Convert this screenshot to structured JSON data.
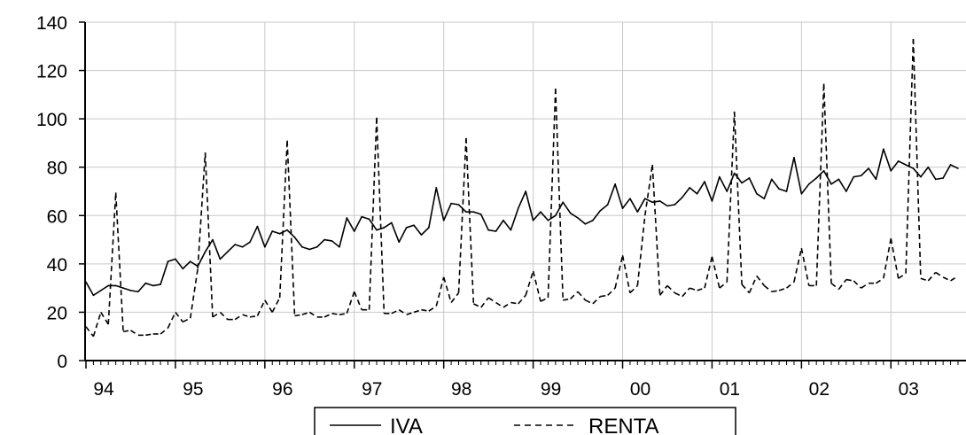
{
  "chart_data": {
    "type": "line",
    "title": "",
    "xlabel": "",
    "ylabel": "",
    "ylim": [
      0,
      140
    ],
    "yticks": [
      0,
      20,
      40,
      60,
      80,
      100,
      120,
      140
    ],
    "xticks": [
      "94",
      "95",
      "96",
      "97",
      "98",
      "99",
      "00",
      "01",
      "02",
      "03"
    ],
    "grid": true,
    "legend_position": "bottom-center",
    "x_start": "1994-01",
    "frequency": "monthly",
    "series": [
      {
        "name": "IVA_",
        "style": "solid",
        "color": "#000000",
        "values": [
          32.5,
          27.0,
          29.0,
          31.0,
          31.0,
          30.0,
          29.0,
          28.5,
          32.0,
          31.0,
          31.5,
          41.0,
          42.0,
          38.0,
          41.0,
          39.0,
          45.0,
          50.0,
          42.0,
          45.0,
          48.0,
          47.0,
          49.0,
          55.5,
          47.0,
          53.5,
          52.5,
          54.0,
          51.0,
          47.0,
          46.0,
          47.0,
          50.0,
          49.5,
          47.0,
          59.0,
          53.5,
          59.5,
          58.5,
          54.0,
          55.0,
          57.0,
          49.0,
          55.0,
          56.0,
          52.0,
          55.0,
          71.5,
          58.0,
          65.0,
          64.5,
          61.5,
          61.5,
          60.5,
          54.0,
          53.5,
          58.0,
          54.0,
          63.0,
          70.0,
          58.0,
          61.5,
          58.0,
          60.0,
          65.5,
          61.0,
          59.0,
          56.5,
          58.0,
          62.0,
          64.5,
          73.0,
          63.0,
          67.0,
          61.5,
          67.0,
          65.5,
          66.0,
          64.0,
          64.5,
          67.5,
          71.5,
          69.0,
          74.0,
          66.0,
          76.0,
          70.0,
          77.5,
          73.5,
          75.5,
          69.0,
          67.0,
          75.0,
          71.0,
          70.0,
          84.0,
          69.0,
          73.0,
          75.5,
          78.5,
          73.0,
          75.0,
          70.0,
          76.0,
          76.5,
          79.5,
          75.0,
          87.5,
          78.5,
          82.5,
          81.0,
          79.5,
          76.0,
          80.0,
          75.0,
          75.5,
          81.0,
          79.5
        ]
      },
      {
        "name": "RENTA_",
        "style": "dashed",
        "color": "#000000",
        "values": [
          14.0,
          10.0,
          20.0,
          15.0,
          69.5,
          12.0,
          12.5,
          10.5,
          10.5,
          11.0,
          11.0,
          13.5,
          20.0,
          16.0,
          17.5,
          38.0,
          86.0,
          18.0,
          20.0,
          17.0,
          17.0,
          19.0,
          18.0,
          18.5,
          25.0,
          20.0,
          26.0,
          91.0,
          18.5,
          19.0,
          20.0,
          18.0,
          18.0,
          19.5,
          19.0,
          19.5,
          28.5,
          21.0,
          21.0,
          100.5,
          19.5,
          19.5,
          21.0,
          19.0,
          20.0,
          21.0,
          20.5,
          22.5,
          34.5,
          24.0,
          28.0,
          92.0,
          23.5,
          22.0,
          26.0,
          24.0,
          22.0,
          24.0,
          23.5,
          27.0,
          37.0,
          24.5,
          26.0,
          112.5,
          25.0,
          25.5,
          28.5,
          25.0,
          23.5,
          26.5,
          27.0,
          30.0,
          43.5,
          28.0,
          31.0,
          60.0,
          81.0,
          27.0,
          31.0,
          28.0,
          26.5,
          30.0,
          29.0,
          30.0,
          43.0,
          30.0,
          32.5,
          103.0,
          31.5,
          28.0,
          35.0,
          31.0,
          28.5,
          29.0,
          30.0,
          32.5,
          46.5,
          31.0,
          31.0,
          114.5,
          32.0,
          29.5,
          33.5,
          33.0,
          30.0,
          32.0,
          32.0,
          34.0,
          50.5,
          34.0,
          36.0,
          133.0,
          34.0,
          33.0,
          36.5,
          34.5,
          33.0,
          35.0
        ]
      }
    ]
  }
}
